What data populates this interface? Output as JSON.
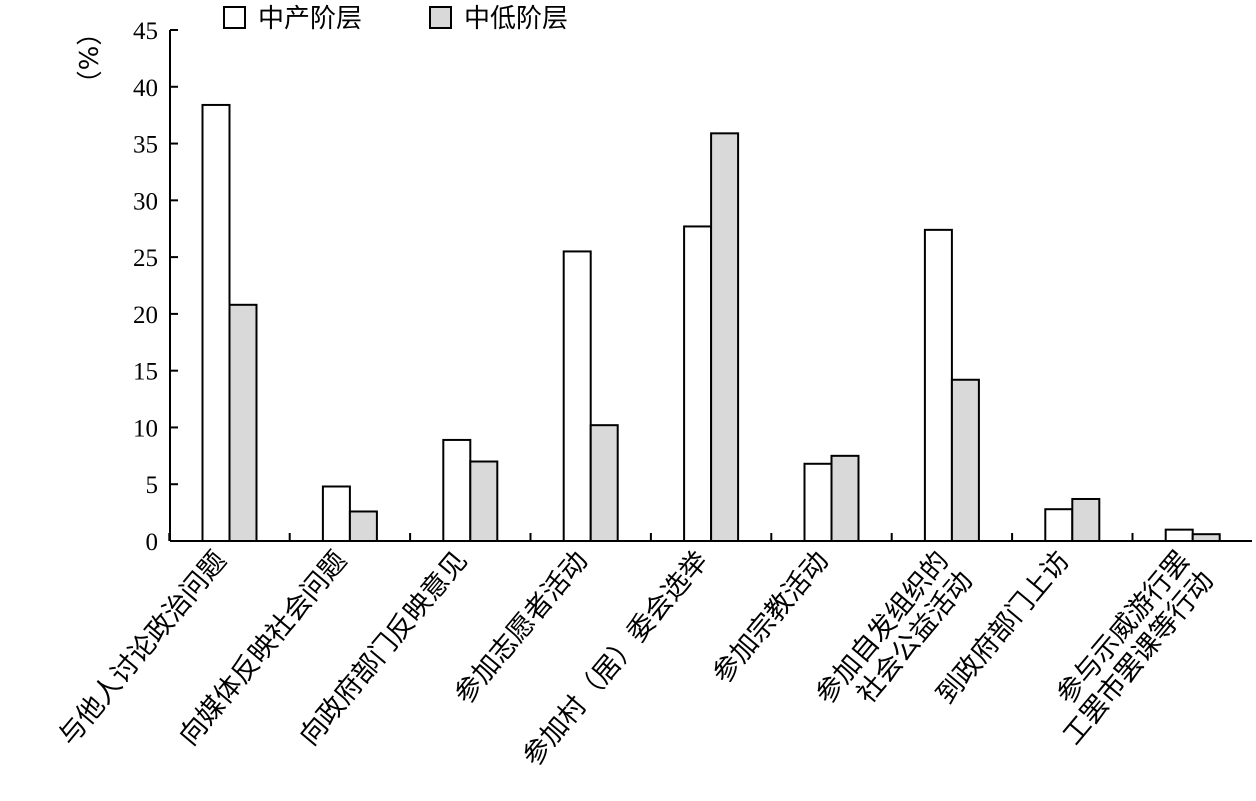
{
  "chart_data": {
    "type": "bar",
    "ylabel": "（%）",
    "ylim": [
      0,
      45
    ],
    "yticks": [
      0,
      5,
      10,
      15,
      20,
      25,
      30,
      35,
      40,
      45
    ],
    "legend_position": "top",
    "categories": [
      [
        "与他人讨论政治问题"
      ],
      [
        "向媒体反映社会问题"
      ],
      [
        "向政府部门反映意见"
      ],
      [
        "参加志愿者活动"
      ],
      [
        "参加村（居）委会选举"
      ],
      [
        "参加宗教活动"
      ],
      [
        "参加自发组织的",
        "社会公益活动"
      ],
      [
        "到政府部门上访"
      ],
      [
        "参与示威游行罢",
        "工罢市罢课等行动"
      ]
    ],
    "series": [
      {
        "name": "中产阶层",
        "color": "#ffffff",
        "values": [
          38.4,
          4.8,
          8.9,
          25.5,
          27.7,
          6.8,
          27.4,
          2.8,
          1.0
        ]
      },
      {
        "name": "中低阶层",
        "color": "#d9d9d9",
        "values": [
          20.8,
          2.6,
          7.0,
          10.2,
          35.9,
          7.5,
          14.2,
          3.7,
          0.6
        ]
      }
    ]
  }
}
